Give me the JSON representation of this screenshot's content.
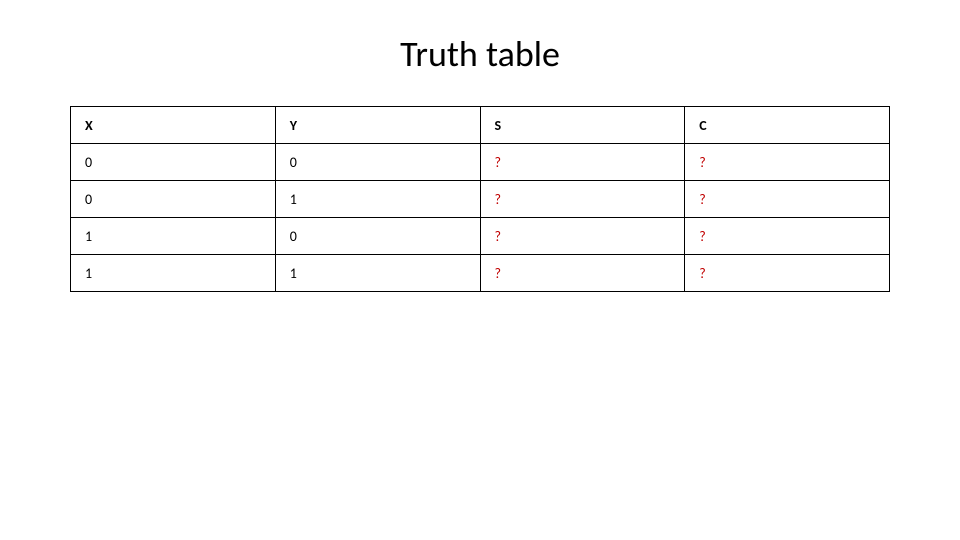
{
  "title": "Truth table",
  "table": {
    "columns": [
      "X",
      "Y",
      "S",
      "C"
    ],
    "rows": [
      {
        "x": "0",
        "y": "0",
        "s": "?",
        "c": "?"
      },
      {
        "x": "0",
        "y": "1",
        "s": "?",
        "c": "?"
      },
      {
        "x": "1",
        "y": "0",
        "s": "?",
        "c": "?"
      },
      {
        "x": "1",
        "y": "1",
        "s": "?",
        "c": "?"
      }
    ],
    "unknown_color": "#c00000",
    "border_color": "#000000",
    "header_fontweight": "bold",
    "cell_fontsize": 14,
    "title_fontsize": 36
  }
}
